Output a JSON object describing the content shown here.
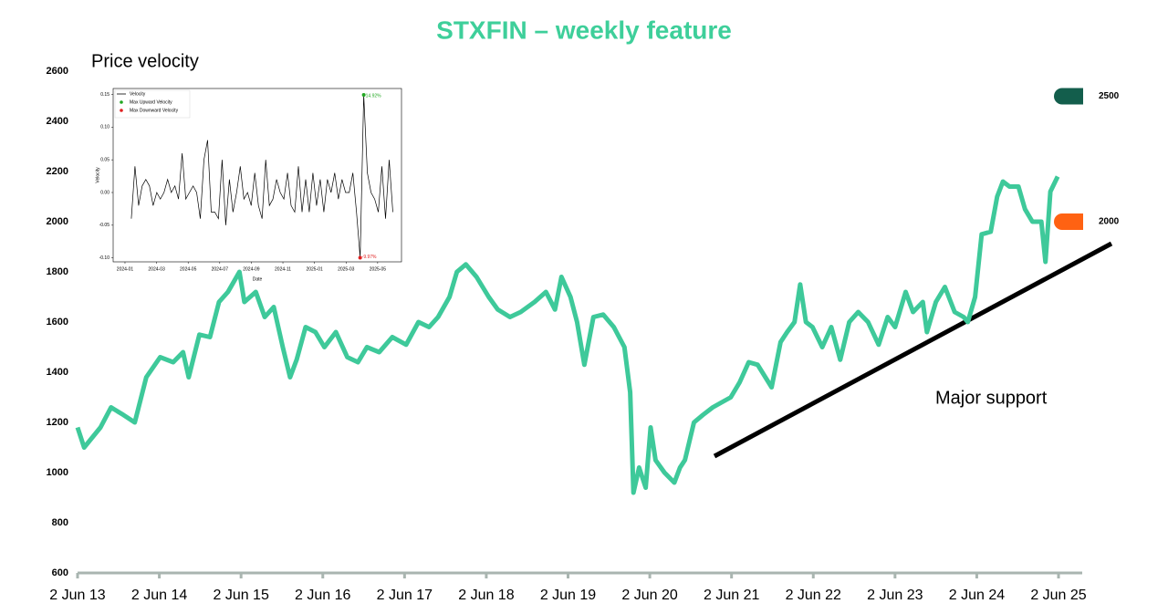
{
  "chart_data": [
    {
      "type": "line",
      "title": "STXFIN – weekly feature",
      "subtitle": "Price velocity",
      "color": "#3ec99a",
      "annotations": [
        "Major support"
      ],
      "levels": [
        2500,
        2000
      ],
      "level_colors": [
        "#135e4c",
        "#ff6212"
      ],
      "x": [
        2013.42,
        2013.5,
        2013.7,
        2013.83,
        2013.98,
        2014.12,
        2014.26,
        2014.43,
        2014.59,
        2014.71,
        2014.78,
        2014.91,
        2015.04,
        2015.15,
        2015.26,
        2015.4,
        2015.46,
        2015.6,
        2015.71,
        2015.82,
        2015.93,
        2016.02,
        2016.1,
        2016.21,
        2016.33,
        2016.44,
        2016.58,
        2016.72,
        2016.85,
        2016.96,
        2017.11,
        2017.27,
        2017.44,
        2017.59,
        2017.72,
        2017.83,
        2017.97,
        2018.06,
        2018.17,
        2018.3,
        2018.45,
        2018.56,
        2018.71,
        2018.84,
        2019.01,
        2019.15,
        2019.26,
        2019.34,
        2019.45,
        2019.53,
        2019.62,
        2019.73,
        2019.85,
        2019.98,
        2020.11,
        2020.18,
        2020.22,
        2020.29,
        2020.37,
        2020.43,
        2020.49,
        2020.6,
        2020.72,
        2020.79,
        2020.85,
        2020.96,
        2021.07,
        2021.19,
        2021.3,
        2021.41,
        2021.52,
        2021.63,
        2021.74,
        2021.91,
        2022.02,
        2022.1,
        2022.19,
        2022.26,
        2022.33,
        2022.41,
        2022.53,
        2022.64,
        2022.75,
        2022.86,
        2022.97,
        2023.09,
        2023.22,
        2023.33,
        2023.42,
        2023.55,
        2023.64,
        2023.76,
        2023.81,
        2023.92,
        2024.03,
        2024.15,
        2024.26,
        2024.31,
        2024.4,
        2024.48,
        2024.59,
        2024.67,
        2024.74,
        2024.82,
        2024.93,
        2025.01,
        2025.1,
        2025.21,
        2025.26,
        2025.32,
        2025.41
      ],
      "values": [
        1180,
        1100,
        1180,
        1260,
        1230,
        1200,
        1380,
        1460,
        1440,
        1480,
        1380,
        1550,
        1540,
        1680,
        1720,
        1800,
        1680,
        1720,
        1620,
        1660,
        1500,
        1380,
        1450,
        1580,
        1560,
        1500,
        1560,
        1460,
        1440,
        1500,
        1480,
        1540,
        1510,
        1600,
        1580,
        1620,
        1700,
        1800,
        1830,
        1780,
        1700,
        1650,
        1620,
        1640,
        1680,
        1720,
        1650,
        1780,
        1700,
        1600,
        1430,
        1620,
        1630,
        1580,
        1500,
        1320,
        920,
        1020,
        940,
        1180,
        1050,
        1000,
        960,
        1020,
        1050,
        1200,
        1230,
        1260,
        1280,
        1300,
        1360,
        1440,
        1430,
        1340,
        1520,
        1560,
        1600,
        1750,
        1600,
        1580,
        1500,
        1580,
        1450,
        1600,
        1640,
        1600,
        1510,
        1620,
        1580,
        1720,
        1640,
        1680,
        1560,
        1680,
        1740,
        1640,
        1620,
        1600,
        1700,
        1950,
        1960,
        2100,
        2160,
        2140,
        2140,
        2050,
        2000,
        2000,
        1840,
        2120,
        2180
      ],
      "xlim": [
        2013.42,
        2025.71
      ],
      "ylim": [
        600,
        2600
      ],
      "xticks": [
        {
          "value": 2013.42,
          "label": "2 Jun 13"
        },
        {
          "value": 2014.42,
          "label": "2 Jun 14"
        },
        {
          "value": 2015.42,
          "label": "2 Jun 15"
        },
        {
          "value": 2016.42,
          "label": "2 Jun 16"
        },
        {
          "value": 2017.42,
          "label": "2 Jun 17"
        },
        {
          "value": 2018.42,
          "label": "2 Jun 18"
        },
        {
          "value": 2019.42,
          "label": "2 Jun 19"
        },
        {
          "value": 2020.42,
          "label": "2 Jun 20"
        },
        {
          "value": 2021.42,
          "label": "2 Jun 21"
        },
        {
          "value": 2022.42,
          "label": "2 Jun 22"
        },
        {
          "value": 2023.42,
          "label": "2 Jun 23"
        },
        {
          "value": 2024.42,
          "label": "2 Jun 24"
        },
        {
          "value": 2025.42,
          "label": "2 Jun 25"
        }
      ],
      "yticks": [
        600,
        800,
        1000,
        1200,
        1400,
        1600,
        1800,
        2000,
        2200,
        2400,
        2600
      ]
    },
    {
      "type": "line",
      "x_label": "Date",
      "y_label": "Velocity",
      "legend": "upper left",
      "xlim": [
        -0.75,
        17.51
      ],
      "ylim": [
        -0.106,
        0.159
      ],
      "xticks": [
        {
          "value": 0,
          "label": "2024-01"
        },
        {
          "value": 2,
          "label": "2024-03"
        },
        {
          "value": 4,
          "label": "2024-05"
        },
        {
          "value": 6,
          "label": "2024-07"
        },
        {
          "value": 8,
          "label": "2024-09"
        },
        {
          "value": 10,
          "label": "2024-11"
        },
        {
          "value": 12,
          "label": "2025-01"
        },
        {
          "value": 14,
          "label": "2025-03"
        },
        {
          "value": 16,
          "label": "2025-05"
        }
      ],
      "yticks": [
        {
          "value": -0.1,
          "label": "-0.10"
        },
        -0.05,
        {
          "value": 0,
          "label": "0.00"
        },
        0.05,
        {
          "value": 0.1,
          "label": "0.10"
        },
        0.15
      ],
      "series": [
        {
          "name": "Velocity",
          "color": "#000000",
          "x": [
            0.4,
            0.63,
            0.86,
            1.09,
            1.32,
            1.55,
            1.78,
            2.01,
            2.24,
            2.47,
            2.7,
            2.93,
            3.16,
            3.39,
            3.62,
            3.85,
            4.08,
            4.31,
            4.54,
            4.77,
            5.0,
            5.23,
            5.46,
            5.69,
            5.92,
            6.15,
            6.38,
            6.61,
            6.84,
            7.07,
            7.3,
            7.53,
            7.76,
            7.99,
            8.22,
            8.45,
            8.68,
            8.91,
            9.14,
            9.37,
            9.6,
            9.83,
            10.06,
            10.29,
            10.52,
            10.75,
            10.98,
            11.21,
            11.44,
            11.67,
            11.9,
            12.13,
            12.36,
            12.59,
            12.82,
            13.05,
            13.28,
            13.51,
            13.74,
            13.97,
            14.2,
            14.43,
            14.66,
            14.89,
            15.12,
            15.35,
            15.58,
            15.81,
            16.04,
            16.27,
            16.5,
            16.73,
            16.96
          ],
          "values": [
            -0.04,
            0.04,
            -0.02,
            0.01,
            0.02,
            0.01,
            -0.02,
            0.0,
            -0.01,
            0.0,
            0.02,
            0.0,
            0.01,
            -0.01,
            0.06,
            -0.01,
            0.0,
            0.01,
            0.0,
            -0.04,
            0.05,
            0.08,
            -0.03,
            -0.03,
            -0.04,
            0.05,
            -0.05,
            0.02,
            -0.03,
            0.0,
            0.04,
            -0.01,
            0.0,
            -0.02,
            0.03,
            -0.02,
            -0.04,
            0.05,
            -0.02,
            -0.01,
            0.02,
            0.0,
            -0.01,
            0.03,
            -0.02,
            -0.03,
            0.04,
            -0.03,
            0.02,
            -0.03,
            0.03,
            -0.02,
            0.02,
            -0.03,
            0.02,
            0.0,
            0.03,
            -0.01,
            0.02,
            0.0,
            0.0,
            0.03,
            -0.03,
            -0.0997,
            0.1492,
            0.03,
            0.0,
            -0.01,
            -0.03,
            0.04,
            -0.04,
            0.05,
            -0.03
          ]
        },
        {
          "name": "Max Upward Velocity",
          "color": "#22a822",
          "x": [
            15.12
          ],
          "values": [
            0.1492
          ],
          "value_labels": [
            "14.92%"
          ]
        },
        {
          "name": "Max Downward Velocity",
          "color": "#e02020",
          "x": [
            14.89
          ],
          "values": [
            -0.0997
          ],
          "value_labels": [
            "-9.97%"
          ]
        }
      ]
    }
  ]
}
